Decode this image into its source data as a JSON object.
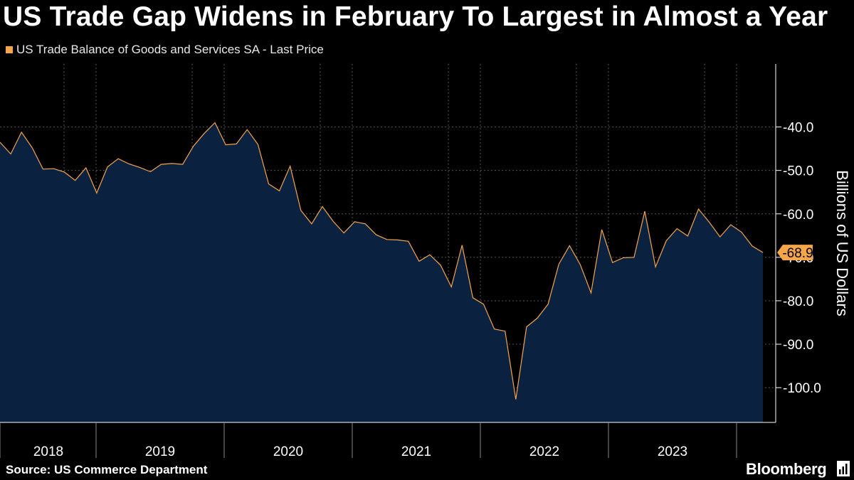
{
  "title": "US Trade Gap Widens in February To Largest in Almost a Year",
  "legend": "US Trade Balance of Goods and Services SA - Last Price",
  "source": "Source: US Commerce Department",
  "brand": "Bloomberg",
  "colors": {
    "background": "#000000",
    "area": "#0b2140",
    "line": "#f5a54a",
    "grid": "#555555",
    "label_bg": "#f5a54a"
  },
  "chart_data": {
    "type": "area",
    "title": "US Trade Gap Widens in February To Largest in Almost a Year",
    "ylabel": "Billions of US Dollars",
    "xlabel": "",
    "ylim": [
      -108,
      -25.5
    ],
    "yticks": [
      -40,
      -50,
      -60,
      -70,
      -80,
      -90,
      -100
    ],
    "ytick_labels": [
      "-40.0",
      "-50.0",
      "-60.0",
      "-70.0",
      "-80.0",
      "-90.0",
      "-100.0"
    ],
    "year_labels": [
      "2018",
      "2019",
      "2020",
      "2021",
      "2022",
      "2023"
    ],
    "last_value_label": "-68.9",
    "start": "2018-01",
    "frequency": "monthly",
    "series": [
      {
        "name": "US Trade Balance of Goods and Services SA - Last Price",
        "values": [
          -43.5,
          -46.2,
          -41.2,
          -44.8,
          -49.7,
          -49.6,
          -50.4,
          -52.3,
          -49.4,
          -55.2,
          -49.2,
          -47.3,
          -48.5,
          -49.3,
          -50.3,
          -48.6,
          -48.4,
          -48.6,
          -44.4,
          -41.5,
          -39.0,
          -44.1,
          -43.9,
          -40.6,
          -44.0,
          -53.1,
          -54.7,
          -49.0,
          -59.2,
          -62.3,
          -58.3,
          -61.7,
          -64.4,
          -61.8,
          -62.3,
          -64.8,
          -65.9,
          -66.0,
          -66.3,
          -70.9,
          -69.4,
          -71.8,
          -76.8,
          -67.2,
          -79.3,
          -80.8,
          -86.5,
          -87.0,
          -102.7,
          -86.0,
          -84.0,
          -80.8,
          -71.6,
          -67.3,
          -71.7,
          -78.2,
          -63.6,
          -71.2,
          -70.1,
          -70.0,
          -59.4,
          -72.2,
          -66.2,
          -63.4,
          -65.1,
          -58.9,
          -61.9,
          -65.3,
          -62.5,
          -64.2,
          -67.4,
          -68.9
        ]
      }
    ]
  }
}
